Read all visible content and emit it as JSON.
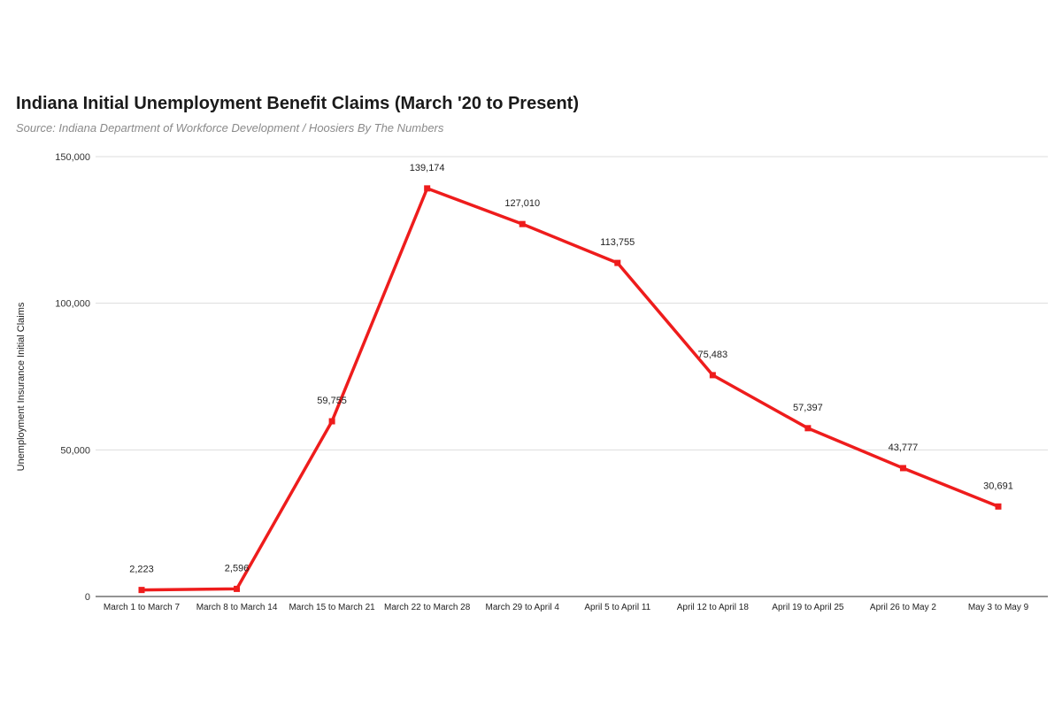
{
  "chart_data": {
    "type": "line",
    "title": "Indiana Initial Unemployment Benefit Claims (March '20 to Present)",
    "subtitle": "Source: Indiana Department of Workforce Development / Hoosiers By The Numbers",
    "xlabel": "",
    "ylabel": "Unemployment Insurance Initial Claims",
    "ylim": [
      0,
      150000
    ],
    "yticks": [
      0,
      50000,
      100000,
      150000
    ],
    "ytick_labels": [
      "0",
      "50,000",
      "100,000",
      "150,000"
    ],
    "grid": true,
    "categories": [
      "March 1 to March 7",
      "March 8 to March 14",
      "March 15 to March 21",
      "March 22 to March 28",
      "March 29 to April 4",
      "April 5 to April 11",
      "April 12 to April 18",
      "April 19 to April 25",
      "April 26 to May 2",
      "May 3 to May 9"
    ],
    "series": [
      {
        "values": [
          2223,
          2596,
          59755,
          139174,
          127010,
          113755,
          75483,
          57397,
          43777,
          30691
        ],
        "data_labels": [
          "2,223",
          "2,596",
          "59,755",
          "139,174",
          "127,010",
          "113,755",
          "75,483",
          "57,397",
          "43,777",
          "30,691"
        ],
        "color": "#ee1c1c"
      }
    ],
    "gridline_color": "#dddddd",
    "axis_color": "#555555"
  }
}
